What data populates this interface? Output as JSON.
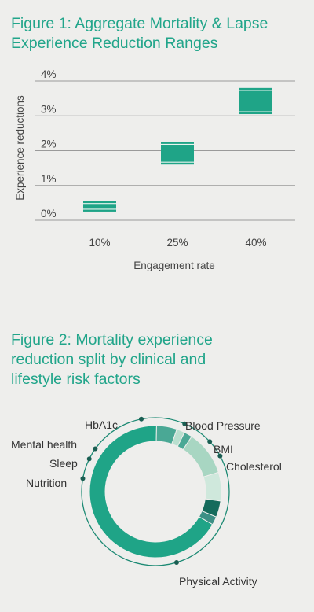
{
  "figures": {
    "fig1_title_line1": "Figure 1: Aggregate Mortality & Lapse",
    "fig1_title_line2": "Experience Reduction Ranges",
    "fig2_title_line1": "Figure 2: Mortality experience",
    "fig2_title_line2": "reduction split by clinical and",
    "fig2_title_line3": "lifestyle risk factors"
  },
  "colors": {
    "accent": "#21a58a",
    "box_fill": "#1fa487",
    "grid": "#9a9a9a",
    "dark_teal": "#156b5c",
    "mid_teal": "#4aa895",
    "light_mint": "#b9dfcf",
    "pale_mint": "#cfe8dc"
  },
  "chart_data": [
    {
      "type": "box",
      "xlabel": "Engagement rate",
      "ylabel": "Experience reductions",
      "ylim": [
        0,
        4
      ],
      "yticks": [
        "0%",
        "1%",
        "2%",
        "3%",
        "4%"
      ],
      "ytick_values": [
        0,
        1,
        2,
        3,
        4
      ],
      "grid": true,
      "categories": [
        "10%",
        "25%",
        "40%"
      ],
      "ranges": [
        {
          "low": 0.25,
          "high": 0.55
        },
        {
          "low": 1.6,
          "high": 2.25
        },
        {
          "low": 3.05,
          "high": 3.8
        }
      ]
    },
    {
      "type": "pie",
      "style": "donut",
      "slices": [
        {
          "label": "Physical Activity",
          "value": 67,
          "color": "#1fa487"
        },
        {
          "label": "Nutrition",
          "value": 5,
          "color": "#4aa895"
        },
        {
          "label": "Sleep",
          "value": 2,
          "color": "#b9dfcf"
        },
        {
          "label": "Mental health",
          "value": 2,
          "color": "#4aa895"
        },
        {
          "label": "HbA1c",
          "value": 11,
          "color": "#a8d6c2"
        },
        {
          "label": "Blood Pressure",
          "value": 7,
          "color": "#cfe8dc"
        },
        {
          "label": "BMI",
          "value": 4,
          "color": "#156b5c"
        },
        {
          "label": "Cholesterol",
          "value": 2,
          "color": "#3d8f85"
        }
      ]
    }
  ]
}
